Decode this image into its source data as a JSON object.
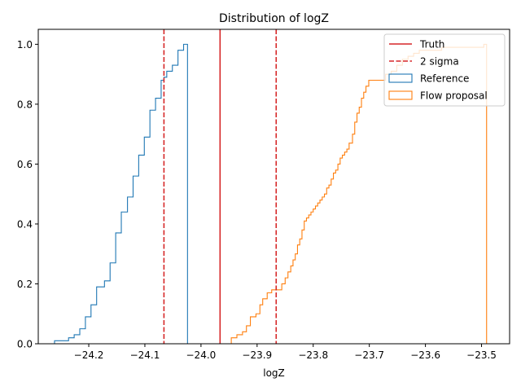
{
  "chart_data": {
    "type": "histogram",
    "histtype": "step",
    "cumulative": true,
    "density": true,
    "title": "Distribution of logZ",
    "xlabel": "logZ",
    "ylabel": "",
    "xlim": [
      -24.29,
      -23.45
    ],
    "ylim": [
      0,
      1.05
    ],
    "xticks": [
      -24.2,
      -24.1,
      -24.0,
      -23.9,
      -23.8,
      -23.7,
      -23.6,
      -23.5
    ],
    "xtick_labels": [
      "−24.2",
      "−24.1",
      "−24.0",
      "−23.9",
      "−23.8",
      "−23.7",
      "−23.6",
      "−23.5"
    ],
    "yticks": [
      0.0,
      0.2,
      0.4,
      0.6,
      0.8,
      1.0
    ],
    "ytick_labels": [
      "0.0",
      "0.2",
      "0.4",
      "0.6",
      "0.8",
      "1.0"
    ],
    "grid": false,
    "legend": {
      "placement": "top-right",
      "entries": [
        {
          "label": "Truth",
          "style": "solid-line",
          "color": "#d62728"
        },
        {
          "label": "2 sigma",
          "style": "dashed-line",
          "color": "#d62728"
        },
        {
          "label": "Reference",
          "style": "patch",
          "color": "#1f77b4"
        },
        {
          "label": "Flow proposal",
          "style": "patch",
          "color": "#ff7f0e"
        }
      ]
    },
    "vlines": [
      {
        "name": "Truth",
        "x": -23.966,
        "style": "solid",
        "color": "#d62728"
      },
      {
        "name": "2 sigma",
        "x": -24.066,
        "style": "dashed",
        "color": "#d62728"
      },
      {
        "name": "2 sigma",
        "x": -23.866,
        "style": "dashed",
        "color": "#d62728"
      }
    ],
    "series": [
      {
        "name": "Reference",
        "color": "#1f77b4",
        "steps": [
          [
            -24.261,
            0.01
          ],
          [
            -24.241,
            0.01
          ],
          [
            -24.236,
            0.02
          ],
          [
            -24.226,
            0.03
          ],
          [
            -24.216,
            0.05
          ],
          [
            -24.206,
            0.09
          ],
          [
            -24.196,
            0.13
          ],
          [
            -24.186,
            0.19
          ],
          [
            -24.172,
            0.21
          ],
          [
            -24.162,
            0.27
          ],
          [
            -24.152,
            0.37
          ],
          [
            -24.142,
            0.44
          ],
          [
            -24.131,
            0.49
          ],
          [
            -24.121,
            0.56
          ],
          [
            -24.111,
            0.63
          ],
          [
            -24.101,
            0.69
          ],
          [
            -24.091,
            0.78
          ],
          [
            -24.081,
            0.82
          ],
          [
            -24.071,
            0.88
          ],
          [
            -24.066,
            0.89
          ],
          [
            -24.061,
            0.91
          ],
          [
            -24.051,
            0.93
          ],
          [
            -24.041,
            0.98
          ],
          [
            -24.031,
            1.0
          ]
        ],
        "end": -24.024
      },
      {
        "name": "Flow proposal",
        "color": "#ff7f0e",
        "steps": [
          [
            -23.946,
            0.02
          ],
          [
            -23.936,
            0.03
          ],
          [
            -23.926,
            0.04
          ],
          [
            -23.919,
            0.06
          ],
          [
            -23.912,
            0.09
          ],
          [
            -23.902,
            0.1
          ],
          [
            -23.895,
            0.13
          ],
          [
            -23.89,
            0.15
          ],
          [
            -23.882,
            0.17
          ],
          [
            -23.874,
            0.18
          ],
          [
            -23.856,
            0.2
          ],
          [
            -23.85,
            0.22
          ],
          [
            -23.845,
            0.24
          ],
          [
            -23.84,
            0.26
          ],
          [
            -23.836,
            0.28
          ],
          [
            -23.832,
            0.3
          ],
          [
            -23.828,
            0.33
          ],
          [
            -23.824,
            0.35
          ],
          [
            -23.82,
            0.38
          ],
          [
            -23.816,
            0.41
          ],
          [
            -23.812,
            0.42
          ],
          [
            -23.808,
            0.43
          ],
          [
            -23.804,
            0.44
          ],
          [
            -23.8,
            0.45
          ],
          [
            -23.796,
            0.46
          ],
          [
            -23.792,
            0.47
          ],
          [
            -23.788,
            0.48
          ],
          [
            -23.784,
            0.49
          ],
          [
            -23.78,
            0.5
          ],
          [
            -23.776,
            0.52
          ],
          [
            -23.772,
            0.53
          ],
          [
            -23.768,
            0.55
          ],
          [
            -23.764,
            0.57
          ],
          [
            -23.76,
            0.58
          ],
          [
            -23.756,
            0.6
          ],
          [
            -23.752,
            0.62
          ],
          [
            -23.748,
            0.63
          ],
          [
            -23.744,
            0.64
          ],
          [
            -23.74,
            0.65
          ],
          [
            -23.736,
            0.67
          ],
          [
            -23.73,
            0.7
          ],
          [
            -23.726,
            0.74
          ],
          [
            -23.722,
            0.77
          ],
          [
            -23.718,
            0.79
          ],
          [
            -23.714,
            0.82
          ],
          [
            -23.71,
            0.84
          ],
          [
            -23.706,
            0.86
          ],
          [
            -23.701,
            0.88
          ],
          [
            -23.681,
            0.88
          ],
          [
            -23.671,
            0.9
          ],
          [
            -23.661,
            0.91
          ],
          [
            -23.651,
            0.93
          ],
          [
            -23.641,
            0.95
          ],
          [
            -23.631,
            0.96
          ],
          [
            -23.621,
            0.97
          ],
          [
            -23.611,
            0.98
          ],
          [
            -23.591,
            0.98
          ],
          [
            -23.571,
            0.99
          ],
          [
            -23.551,
            0.99
          ],
          [
            -23.531,
            0.99
          ],
          [
            -23.511,
            0.99
          ],
          [
            -23.496,
            1.0
          ]
        ],
        "end": -23.491
      }
    ]
  }
}
